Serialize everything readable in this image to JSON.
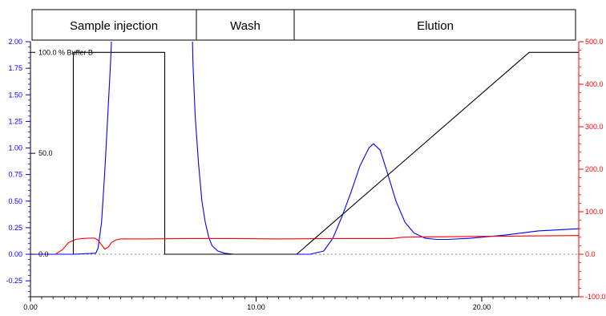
{
  "phases": [
    {
      "label": "Sample injection"
    },
    {
      "label": "Wash"
    },
    {
      "label": "Elution"
    }
  ],
  "chart_data": {
    "type": "line",
    "title": "",
    "xlabel": "",
    "xlim": [
      0,
      24.3
    ],
    "x_ticks": [
      "0.00",
      "10.00",
      "20.00"
    ],
    "x_tick_values": [
      0,
      10,
      20
    ],
    "left_axis": {
      "ylim": [
        -0.4,
        2.0
      ],
      "color": "#0000ff",
      "ticks": [
        "2.00",
        "1.75",
        "1.50",
        "1.25",
        "1.00",
        "0.75",
        "0.50",
        "0.25",
        "0.00",
        "-0.25"
      ],
      "tick_values": [
        2.0,
        1.75,
        1.5,
        1.25,
        1.0,
        0.75,
        0.5,
        0.25,
        0.0,
        -0.25
      ]
    },
    "right_axis": {
      "ylim": [
        -100,
        500
      ],
      "color": "#ff0000",
      "ticks": [
        "500.0",
        "400.0",
        "300.0",
        "200.0",
        "100.0",
        "0.0",
        "-100.0"
      ],
      "tick_values": [
        500,
        400,
        300,
        200,
        100,
        0,
        -100
      ]
    },
    "buffer_axis": {
      "ylim": [
        0,
        100
      ],
      "labels": [
        "100.0 % Buffer B",
        "50.0",
        "0.0"
      ],
      "label_values": [
        100,
        50,
        0
      ]
    },
    "series": [
      {
        "axis": "left",
        "color": "#0000ff",
        "x": [
          0,
          1.9,
          2.9,
          3.0,
          3.15,
          3.3,
          3.45,
          3.55,
          3.65,
          7.15,
          7.2,
          7.3,
          7.45,
          7.6,
          7.75,
          7.9,
          8.05,
          8.3,
          8.6,
          9.0,
          9.4,
          11.8,
          12.4,
          13.0,
          13.4,
          13.8,
          14.2,
          14.6,
          15.0,
          15.2,
          15.5,
          15.8,
          16.2,
          16.6,
          17.0,
          17.5,
          18.0,
          18.5,
          19.5,
          21.0,
          22.5,
          24.3
        ],
        "y": [
          0,
          0,
          0.01,
          0.06,
          0.3,
          0.8,
          1.4,
          1.8,
          2.3,
          2.3,
          1.8,
          1.3,
          0.85,
          0.5,
          0.3,
          0.16,
          0.08,
          0.03,
          0.01,
          0,
          0,
          0,
          0,
          0.03,
          0.15,
          0.35,
          0.58,
          0.83,
          1.0,
          1.04,
          0.98,
          0.78,
          0.5,
          0.3,
          0.2,
          0.15,
          0.14,
          0.14,
          0.15,
          0.18,
          0.22,
          0.24
        ]
      },
      {
        "axis": "right",
        "color": "#ff0000",
        "x": [
          1.1,
          1.4,
          1.7,
          2.0,
          2.3,
          2.6,
          2.85,
          3.0,
          3.15,
          3.3,
          3.45,
          3.6,
          3.8,
          4.0,
          4.3,
          5.0,
          7.0,
          9.0,
          11.0,
          14.0,
          16.0,
          16.5,
          18.0,
          20.0,
          22.0,
          24.3
        ],
        "y": [
          0,
          10,
          28,
          35,
          37,
          38,
          38,
          33,
          22,
          12,
          17,
          28,
          34,
          36,
          36,
          36,
          37,
          37,
          36,
          37,
          37,
          40,
          41,
          42,
          43,
          44
        ]
      },
      {
        "axis": "buffer",
        "color": "#000000",
        "x": [
          1.9,
          1.9,
          5.95,
          5.95,
          11.8,
          22.1,
          24.3
        ],
        "y": [
          0,
          100,
          100,
          0,
          0,
          100,
          100
        ]
      }
    ],
    "reference_lines": [
      {
        "axis": "left",
        "y": 0,
        "style": "dotted",
        "color": "#888888"
      }
    ]
  }
}
